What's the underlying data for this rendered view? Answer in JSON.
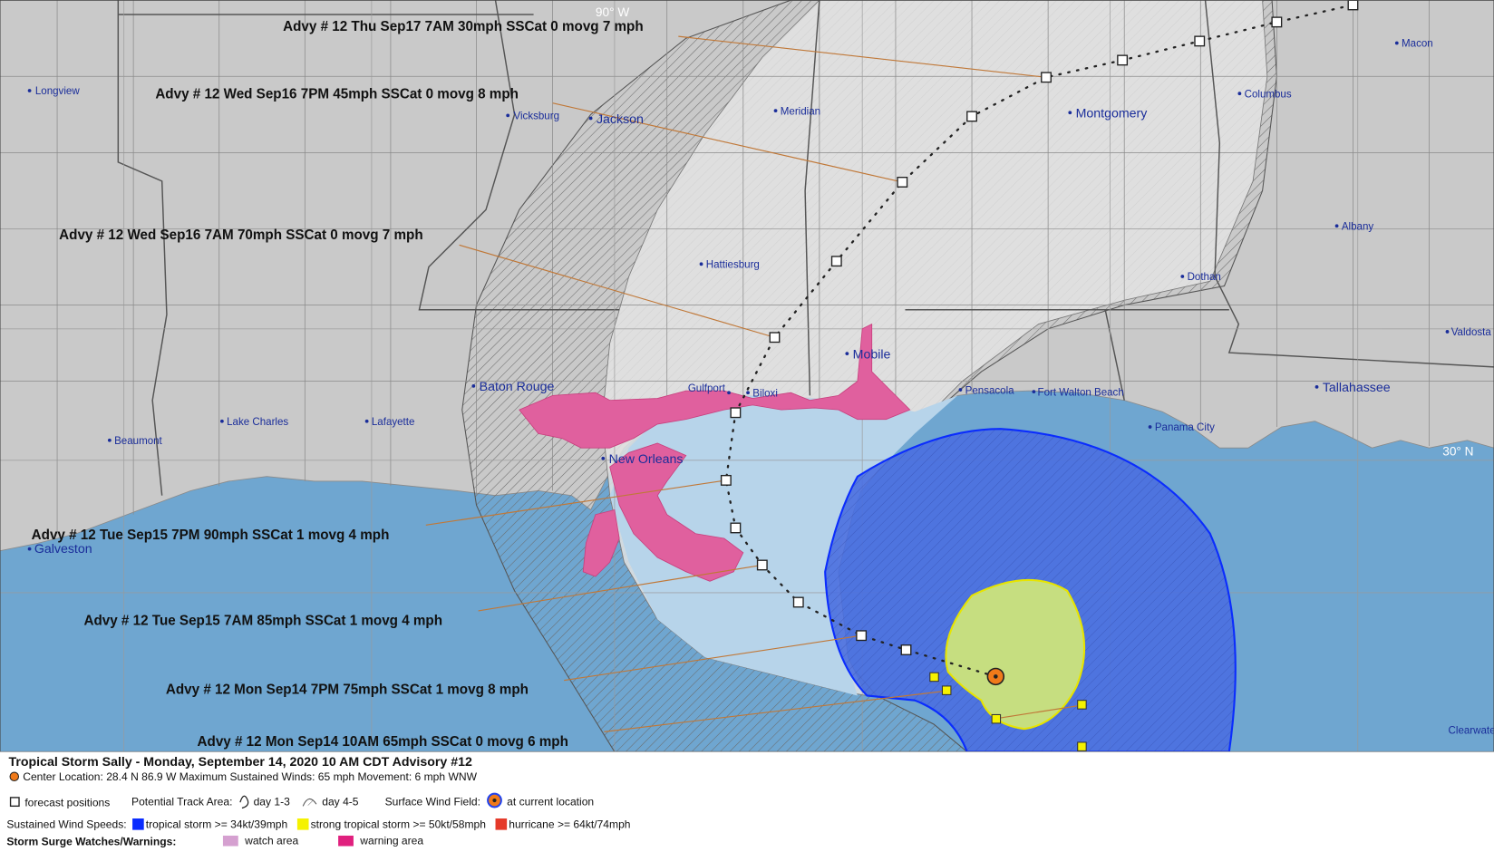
{
  "map": {
    "graticule": [
      "90° W",
      "30° N"
    ],
    "advisories": [
      "Advy # 12 Thu Sep17 7AM  30mph SSCat 0 movg 7 mph",
      "Advy # 12 Wed Sep16 7PM  45mph SSCat 0 movg 8 mph",
      "Advy # 12 Wed Sep16 7AM  70mph SSCat 0 movg 7 mph",
      "Advy # 12 Tue Sep15 7PM  90mph SSCat 1 movg 4 mph",
      "Advy # 12 Tue Sep15 7AM  85mph SSCat 1 movg 4 mph",
      "Advy # 12 Mon Sep14 7PM  75mph SSCat 1 movg 8 mph",
      "Advy # 12 Mon Sep14 10AM  65mph SSCat 0 movg 6 mph"
    ],
    "cities": [
      "Longview",
      "Vicksburg",
      "Jackson",
      "Meridian",
      "Montgomery",
      "Columbus",
      "Macon",
      "Hattiesburg",
      "Albany",
      "Dothan",
      "Valdosta",
      "Mobile",
      "Baton Rouge",
      "Gulfport",
      "Biloxi",
      "Pensacola",
      "Fort Walton Beach",
      "Tallahassee",
      "Panama City",
      "Lake Charles",
      "Lafayette",
      "Beaumont",
      "New Orleans",
      "Galveston",
      "Clearwater"
    ]
  },
  "legend": {
    "title": "Tropical Storm Sally  -  Monday, September 14, 2020  10 AM CDT   Advisory #12",
    "center": "Center Location: 28.4 N  86.9 W   Maximum Sustained Winds: 65 mph  Movement: 6 mph WNW",
    "forecast_positions": "forecast positions",
    "track_area": "Potential Track Area:",
    "day_1_3": "day 1-3",
    "day_4_5": "day 4-5",
    "wind_field": "Surface Wind Field:",
    "current_location": "at current location",
    "wind_speeds": "Sustained Wind Speeds:",
    "tropical_storm": "tropical storm >= 34kt/39mph",
    "strong_tropical_storm": "strong tropical storm >= 50kt/58mph",
    "hurricane": "hurricane >= 64kt/74mph",
    "surge": "Storm Surge Watches/Warnings:",
    "watch_area": "watch area",
    "warning_area": "warning area"
  }
}
